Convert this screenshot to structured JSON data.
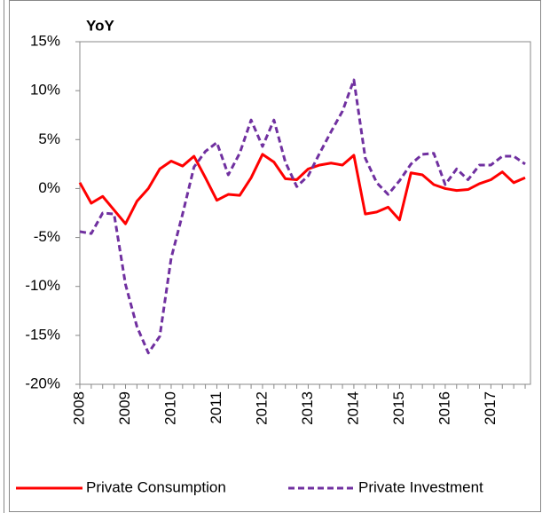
{
  "chart_data": {
    "type": "line",
    "title": "YoY",
    "categories": [
      "2008",
      null,
      null,
      null,
      "2009",
      null,
      null,
      null,
      "2010",
      null,
      null,
      null,
      "2011",
      null,
      null,
      null,
      "2012",
      null,
      null,
      null,
      "2013",
      null,
      null,
      null,
      "2014",
      null,
      null,
      null,
      "2015",
      null,
      null,
      null,
      "2016",
      null,
      null,
      null,
      "2017",
      null,
      null,
      null
    ],
    "series": [
      {
        "name": "Private Consumption",
        "color": "#ff0000",
        "dash": false,
        "values": [
          0.6,
          -1.5,
          -0.8,
          -2.2,
          -3.6,
          -1.3,
          0,
          2.0,
          2.8,
          2.3,
          3.3,
          1.1,
          -1.2,
          -0.6,
          -0.7,
          1.1,
          3.5,
          2.7,
          1.0,
          0.9,
          2.0,
          2.4,
          2.6,
          2.4,
          3.4,
          -2.6,
          -2.4,
          -1.9,
          -3.2,
          1.6,
          1.4,
          0.4,
          0,
          -0.2,
          -0.1,
          0.5,
          0.9,
          1.7,
          0.6,
          1.1
        ]
      },
      {
        "name": "Private Investment",
        "color": "#7030a0",
        "dash": true,
        "values": [
          -4.4,
          -4.6,
          -2.5,
          -2.6,
          -9.8,
          -14.1,
          -16.8,
          -15.1,
          -7.1,
          -2.6,
          2.2,
          3.8,
          4.7,
          1.4,
          3.6,
          7.0,
          4.3,
          7.0,
          2.7,
          0.2,
          1.3,
          3.6,
          5.8,
          7.9,
          11.1,
          3.1,
          0.6,
          -0.6,
          0.8,
          2.5,
          3.5,
          3.6,
          0.4,
          2.0,
          0.9,
          2.4,
          2.4,
          3.3,
          3.3,
          2.5
        ]
      }
    ],
    "ylim": [
      -20,
      15
    ],
    "yticks": [
      {
        "value": -20,
        "label": "-20%"
      },
      {
        "value": -15,
        "label": "-15%"
      },
      {
        "value": -10,
        "label": "-10%"
      },
      {
        "value": -5,
        "label": "-5%"
      },
      {
        "value": 0,
        "label": "0%"
      },
      {
        "value": 5,
        "label": "5%"
      },
      {
        "value": 10,
        "label": "10%"
      },
      {
        "value": 15,
        "label": "15%"
      }
    ],
    "grid": false,
    "legend": "bottom"
  }
}
